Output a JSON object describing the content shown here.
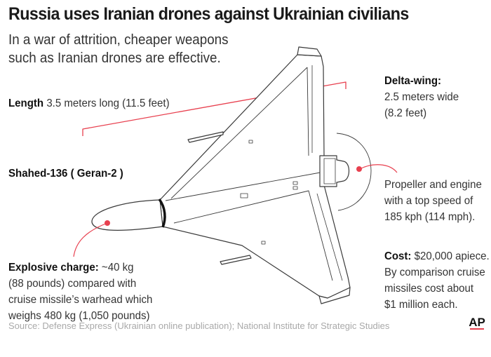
{
  "title": "Russia uses Iranian drones against Ukrainian civilians",
  "subtitle": [
    "In a war of attrition, cheaper weapons",
    "such as Iranian drones are effective."
  ],
  "length": {
    "label": "Length",
    "text": "3.5 meters long (11.5 feet)"
  },
  "delta_wing": {
    "label": "Delta-wing:",
    "lines": [
      "2.5 meters wide",
      "(8.2 feet)"
    ]
  },
  "model": {
    "name": "Shahed-136 ( Geran-2 )"
  },
  "propeller": {
    "lines": [
      "Propeller and engine",
      "with a top speed of",
      "185 kph (114 mph)."
    ]
  },
  "cost": {
    "label": "Cost:",
    "lines": [
      "$20,000 apiece.",
      "By comparison cruise",
      "missiles cost about",
      "$1 million each."
    ]
  },
  "explosive": {
    "label": "Explosive charge:",
    "lines": [
      "~40 kg",
      "(88 pounds) compared with",
      "cruise missile’s warhead which",
      "weighs 480 kg (1,050 pounds)"
    ]
  },
  "source": "Source: Defense Express (Ukrainian online publication); National Institute for Strategic Studies",
  "logo": "AP",
  "colors": {
    "accent": "#e8404f",
    "outline": "#333333",
    "text": "#333333",
    "source": "#a9a9a9"
  }
}
